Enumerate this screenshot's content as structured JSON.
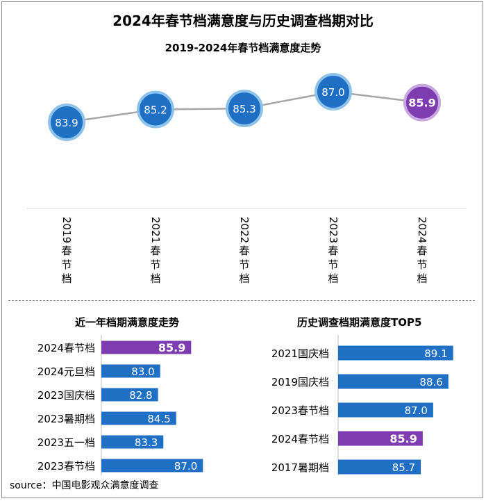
{
  "header": {
    "title": "2024年春节档满意度与历史调查档期对比",
    "subtitle": "2019-2024年春节档满意度走势"
  },
  "colors": {
    "blue": "#1f6fc5",
    "blue_ring": "#8ec4ec",
    "purple": "#7f3cb0",
    "purple_ring": "#c8a6e0",
    "line": "#a6a6a6"
  },
  "chart_data": [
    {
      "type": "line",
      "title": "2019-2024年春节档满意度走势",
      "categories": [
        "2019春节档",
        "2021春节档",
        "2022春节档",
        "2023春节档",
        "2024春节档"
      ],
      "values": [
        83.9,
        85.2,
        85.3,
        87.0,
        85.9
      ],
      "labels": [
        "83.9",
        "85.2",
        "85.3",
        "87.0",
        "85.9"
      ],
      "highlight_index": 4,
      "ylim": [
        82.8,
        88.4
      ]
    },
    {
      "type": "bar",
      "orientation": "horizontal",
      "title": "近一年档期满意度走势",
      "categories": [
        "2024春节档",
        "2024元旦档",
        "2023国庆档",
        "2023暑期档",
        "2023五一档",
        "2023春节档"
      ],
      "values": [
        85.9,
        83.0,
        82.8,
        84.5,
        83.3,
        87.0
      ],
      "labels": [
        "85.9",
        "83.0",
        "82.8",
        "84.5",
        "83.3",
        "87.0"
      ],
      "highlight_index": 0,
      "xlim": [
        77.5,
        88.8
      ]
    },
    {
      "type": "bar",
      "orientation": "horizontal",
      "title": "历史调查档期满意度TOP5",
      "categories": [
        "2021国庆档",
        "2019国庆档",
        "2023春节档",
        "2024春节档",
        "2017暑期档"
      ],
      "values": [
        89.1,
        88.6,
        87.0,
        85.9,
        85.7
      ],
      "labels": [
        "89.1",
        "88.6",
        "87.0",
        "85.9",
        "85.7"
      ],
      "highlight_index": 3,
      "xlim": [
        77.0,
        90.0
      ]
    }
  ],
  "source": "source：中国电影观众满意度调查"
}
